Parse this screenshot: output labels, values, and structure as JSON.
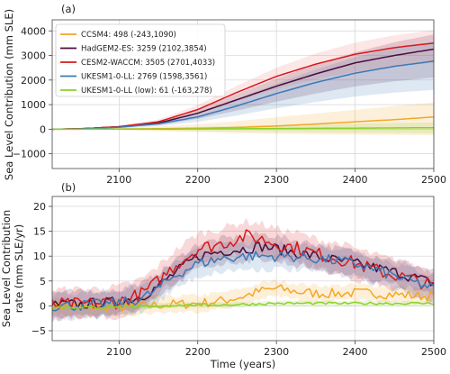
{
  "chart_data": [
    {
      "panel_label": "(a)",
      "type": "line",
      "ylabel": "Sea Level Contribution (mm SLE)",
      "xlim": [
        2015,
        2500
      ],
      "ylim": [
        -1600,
        4450
      ],
      "xticks": [
        "2100",
        "2200",
        "2300",
        "2400",
        "2500"
      ],
      "yticks": [
        {
          "v": -1000,
          "label": "−1000"
        },
        {
          "v": 0,
          "label": "0"
        },
        {
          "v": 1000,
          "label": "1000"
        },
        {
          "v": 2000,
          "label": "2000"
        },
        {
          "v": 3000,
          "label": "3000"
        },
        {
          "v": 4000,
          "label": "4000"
        }
      ],
      "grid": true,
      "legend_position": "top-left",
      "x": [
        2015,
        2050,
        2100,
        2150,
        2200,
        2250,
        2300,
        2350,
        2400,
        2450,
        2500
      ],
      "series": [
        {
          "name": "CCSM4: 498 (-243,1090)",
          "color": "#f5a623",
          "values": [
            0,
            0,
            10,
            20,
            40,
            70,
            130,
            210,
            300,
            390,
            498
          ],
          "lower": [
            0,
            -10,
            -40,
            -80,
            -120,
            -160,
            -190,
            -210,
            -225,
            -235,
            -243
          ],
          "upper": [
            0,
            15,
            50,
            110,
            200,
            330,
            490,
            640,
            790,
            940,
            1090
          ]
        },
        {
          "name": "HadGEM2-ES: 3259 (2102,3854)",
          "color": "#4a0d3a",
          "values": [
            0,
            20,
            100,
            250,
            650,
            1200,
            1750,
            2250,
            2700,
            3000,
            3259
          ],
          "lower": [
            0,
            10,
            60,
            170,
            420,
            760,
            1120,
            1450,
            1740,
            1950,
            2102
          ],
          "upper": [
            0,
            35,
            140,
            330,
            800,
            1430,
            2060,
            2630,
            3130,
            3540,
            3854
          ]
        },
        {
          "name": "CESM2-WACCM: 3505 (2701,4033)",
          "color": "#d7191c",
          "values": [
            0,
            20,
            100,
            300,
            800,
            1500,
            2150,
            2650,
            3050,
            3320,
            3505
          ],
          "lower": [
            0,
            10,
            70,
            230,
            620,
            1150,
            1640,
            2030,
            2340,
            2560,
            2701
          ],
          "upper": [
            0,
            35,
            150,
            390,
            980,
            1770,
            2500,
            3080,
            3520,
            3820,
            4033
          ],
          "band_color": "#f26b6b"
        },
        {
          "name": "UKESM1-0-LL: 2769 (1598,3561)",
          "color": "#3b79b8",
          "values": [
            0,
            10,
            80,
            220,
            500,
            950,
            1450,
            1900,
            2280,
            2560,
            2769
          ],
          "lower": [
            0,
            5,
            40,
            130,
            300,
            560,
            850,
            1110,
            1330,
            1490,
            1598
          ],
          "upper": [
            0,
            20,
            120,
            300,
            680,
            1250,
            1850,
            2430,
            2930,
            3300,
            3561
          ]
        },
        {
          "name": "UKESM1-0-LL (low): 61 (-163,278)",
          "color": "#8ad12a",
          "values": [
            0,
            0,
            2,
            5,
            10,
            18,
            27,
            35,
            44,
            52,
            61
          ],
          "lower": [
            0,
            -10,
            -30,
            -55,
            -80,
            -100,
            -118,
            -133,
            -146,
            -155,
            -163
          ],
          "upper": [
            0,
            10,
            30,
            60,
            95,
            130,
            165,
            195,
            225,
            255,
            278
          ]
        }
      ]
    },
    {
      "panel_label": "(b)",
      "type": "line",
      "ylabel": "Sea Level Contribution rate (mm SLE/yr)",
      "xlabel": "Time (years)",
      "xlim": [
        2015,
        2500
      ],
      "ylim": [
        -7,
        22
      ],
      "xticks": [
        "2100",
        "2200",
        "2300",
        "2400",
        "2500"
      ],
      "yticks": [
        {
          "v": -5,
          "label": "−5"
        },
        {
          "v": 0,
          "label": "0"
        },
        {
          "v": 5,
          "label": "5"
        },
        {
          "v": 10,
          "label": "10"
        },
        {
          "v": 15,
          "label": "15"
        },
        {
          "v": 20,
          "label": "20"
        }
      ],
      "grid": true,
      "x": [
        2015,
        2050,
        2100,
        2130,
        2150,
        2170,
        2200,
        2230,
        2260,
        2280,
        2300,
        2330,
        2350,
        2380,
        2400,
        2430,
        2450,
        2480,
        2500
      ],
      "series": [
        {
          "name": "CCSM4",
          "color": "#f5a623",
          "noise": 1.0,
          "values": [
            0,
            -0.3,
            -0.2,
            0,
            0.2,
            0.3,
            0.5,
            1.0,
            2.0,
            3.0,
            3.5,
            2.8,
            2.5,
            2.5,
            2.6,
            2.5,
            2.3,
            2.0,
            2.0
          ],
          "band": 1.6
        },
        {
          "name": "HadGEM2-ES",
          "color": "#4a0d3a",
          "noise": 1.1,
          "values": [
            0.2,
            0.3,
            0.8,
            2.0,
            4.0,
            6.5,
            10.0,
            11.0,
            11.5,
            12.0,
            11.5,
            10.5,
            10.0,
            9.0,
            8.5,
            7.5,
            6.8,
            5.5,
            4.5
          ],
          "band": 2.5
        },
        {
          "name": "CESM2-WACCM",
          "color": "#d7191c",
          "noise": 1.4,
          "values": [
            0.2,
            0.3,
            0.8,
            2.5,
            5.0,
            8.0,
            11.5,
            12.5,
            14.0,
            13.5,
            12.5,
            11.5,
            10.5,
            9.5,
            8.5,
            7.0,
            6.2,
            5.0,
            4.0
          ],
          "band": 3.0
        },
        {
          "name": "UKESM1-0-LL",
          "color": "#3b79b8",
          "noise": 1.1,
          "values": [
            0,
            0.1,
            0.5,
            1.5,
            3.5,
            6.0,
            8.5,
            9.5,
            10.0,
            10.0,
            10.0,
            9.8,
            9.5,
            9.0,
            8.5,
            7.0,
            6.0,
            4.5,
            3.5
          ],
          "band": 2.6
        },
        {
          "name": "UKESM1-0-LL (low)",
          "color": "#8ad12a",
          "noise": 0.25,
          "values": [
            -0.3,
            -0.3,
            -0.2,
            -0.1,
            0,
            0.1,
            0.2,
            0.2,
            0.3,
            0.4,
            0.5,
            0.5,
            0.5,
            0.5,
            0.5,
            0.5,
            0.5,
            0.5,
            0.5
          ],
          "band": 0.5
        }
      ]
    }
  ]
}
